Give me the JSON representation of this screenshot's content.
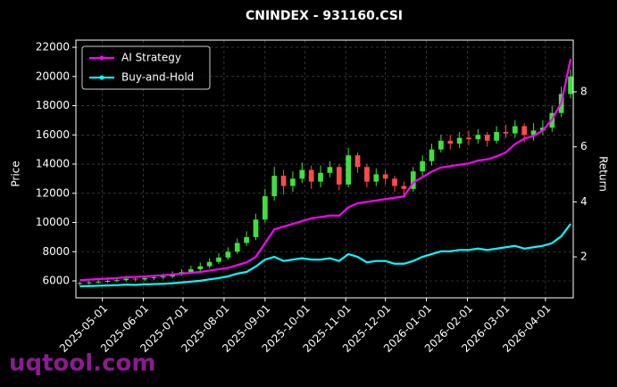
{
  "chart_data": {
    "type": "candlestick",
    "title": "CNINDEX - 931160.CSI",
    "ylabel": "Price",
    "y2label": "Return",
    "x": [
      "2025-04-14",
      "2025-04-21",
      "2025-04-28",
      "2025-05-05",
      "2025-05-12",
      "2025-05-19",
      "2025-05-26",
      "2025-06-02",
      "2025-06-09",
      "2025-06-16",
      "2025-06-23",
      "2025-06-30",
      "2025-07-07",
      "2025-07-14",
      "2025-07-21",
      "2025-07-28",
      "2025-08-04",
      "2025-08-11",
      "2025-08-18",
      "2025-08-25",
      "2025-09-01",
      "2025-09-08",
      "2025-09-15",
      "2025-09-22",
      "2025-09-29",
      "2025-10-06",
      "2025-10-13",
      "2025-10-20",
      "2025-10-27",
      "2025-11-03",
      "2025-11-10",
      "2025-11-17",
      "2025-11-24",
      "2025-12-01",
      "2025-12-08",
      "2025-12-15",
      "2025-12-22",
      "2025-12-29",
      "2026-01-05",
      "2026-01-12",
      "2026-01-19",
      "2026-01-26",
      "2026-02-02",
      "2026-02-09",
      "2026-02-16",
      "2026-02-23",
      "2026-03-02",
      "2026-03-09",
      "2026-03-16",
      "2026-03-23",
      "2026-03-30",
      "2026-04-06",
      "2026-04-13",
      "2026-04-20"
    ],
    "open": [
      5800,
      5850,
      5900,
      5950,
      6000,
      6050,
      6150,
      6100,
      6200,
      6250,
      6300,
      6450,
      6600,
      6800,
      7000,
      7300,
      7600,
      8000,
      8600,
      9000,
      10200,
      11800,
      13200,
      12500,
      13000,
      13600,
      12800,
      13400,
      13800,
      12600,
      14600,
      13800,
      12800,
      13300,
      13000,
      12500,
      12300,
      13500,
      14200,
      15000,
      15600,
      15400,
      15800,
      15700,
      16000,
      15600,
      16200,
      16100,
      16600,
      16000,
      16300,
      16500,
      17500,
      18800
    ],
    "high": [
      5950,
      6000,
      6050,
      6150,
      6200,
      6350,
      6300,
      6350,
      6400,
      6500,
      6650,
      6800,
      7050,
      7250,
      7550,
      7900,
      8300,
      8900,
      9400,
      10600,
      12300,
      13800,
      13600,
      13500,
      14100,
      13900,
      13900,
      14200,
      14000,
      15100,
      14800,
      14000,
      13700,
      13600,
      13200,
      12800,
      13800,
      14600,
      15400,
      16000,
      16000,
      16200,
      16300,
      16400,
      16200,
      16600,
      16700,
      17000,
      16800,
      16800,
      17000,
      18000,
      19300,
      20500
    ],
    "low": [
      5700,
      5750,
      5800,
      5850,
      5900,
      5950,
      5950,
      6000,
      6050,
      6100,
      6200,
      6350,
      6500,
      6650,
      6850,
      7150,
      7450,
      7850,
      8400,
      8800,
      10000,
      11500,
      11900,
      12100,
      12700,
      12300,
      12400,
      13100,
      12200,
      12400,
      13400,
      12400,
      12500,
      12600,
      12100,
      11800,
      12100,
      13200,
      13900,
      14800,
      15000,
      15100,
      15300,
      15400,
      15200,
      15400,
      15800,
      15800,
      15500,
      15600,
      16000,
      16200,
      17200,
      18500
    ],
    "close": [
      5850,
      5900,
      5950,
      6000,
      6050,
      6150,
      6100,
      6200,
      6250,
      6300,
      6450,
      6600,
      6800,
      7000,
      7300,
      7600,
      8000,
      8600,
      9000,
      10200,
      11800,
      13200,
      12500,
      13000,
      13600,
      12800,
      13400,
      13800,
      12600,
      14600,
      13800,
      12800,
      13300,
      13000,
      12500,
      12300,
      13500,
      14200,
      15000,
      15600,
      15400,
      15800,
      15700,
      16000,
      15600,
      16200,
      16100,
      16600,
      16000,
      16300,
      16500,
      17500,
      18800,
      20000
    ],
    "up_color": "#3ee03e",
    "down_color": "#ff4b4b",
    "series": [
      {
        "name": "AI Strategy",
        "color": "#ff00ff",
        "axis": "y2",
        "values": [
          1.15,
          1.17,
          1.19,
          1.21,
          1.23,
          1.26,
          1.27,
          1.29,
          1.31,
          1.33,
          1.36,
          1.39,
          1.42,
          1.45,
          1.5,
          1.55,
          1.6,
          1.7,
          1.8,
          2.0,
          2.5,
          3.0,
          3.1,
          3.2,
          3.3,
          3.4,
          3.45,
          3.5,
          3.5,
          3.8,
          3.95,
          4.0,
          4.05,
          4.1,
          4.15,
          4.2,
          4.7,
          4.9,
          5.1,
          5.25,
          5.3,
          5.35,
          5.4,
          5.5,
          5.55,
          5.65,
          5.8,
          6.1,
          6.3,
          6.4,
          6.6,
          7.0,
          7.6,
          9.2
        ]
      },
      {
        "name": "Buy-and-Hold",
        "color": "#00ffff",
        "axis": "y2",
        "values": [
          0.93,
          0.94,
          0.95,
          0.96,
          0.97,
          0.99,
          0.98,
          1.0,
          1.01,
          1.02,
          1.04,
          1.07,
          1.1,
          1.13,
          1.18,
          1.23,
          1.29,
          1.39,
          1.45,
          1.65,
          1.9,
          2.0,
          1.85,
          1.9,
          1.95,
          1.9,
          1.9,
          1.95,
          1.85,
          2.1,
          2.0,
          1.8,
          1.85,
          1.85,
          1.75,
          1.75,
          1.85,
          2.0,
          2.1,
          2.2,
          2.2,
          2.25,
          2.25,
          2.3,
          2.25,
          2.3,
          2.35,
          2.4,
          2.3,
          2.35,
          2.4,
          2.5,
          2.75,
          3.2
        ]
      }
    ],
    "ylim": [
      4840,
      22490
    ],
    "yticks": [
      6000,
      8000,
      10000,
      12000,
      14000,
      16000,
      18000,
      20000,
      22000
    ],
    "y2lim": [
      0.51,
      9.88
    ],
    "y2ticks": [
      2,
      4,
      6,
      8
    ],
    "xlim": [
      "2025-04-11",
      "2026-04-22"
    ],
    "xticks": [
      "2025-05-01",
      "2025-06-01",
      "2025-07-01",
      "2025-08-01",
      "2025-09-01",
      "2025-10-01",
      "2025-11-01",
      "2025-12-01",
      "2026-01-01",
      "2026-02-01",
      "2026-03-01",
      "2026-04-01"
    ],
    "grid": true,
    "legend": "upper left"
  },
  "watermark": "uqtool.com"
}
